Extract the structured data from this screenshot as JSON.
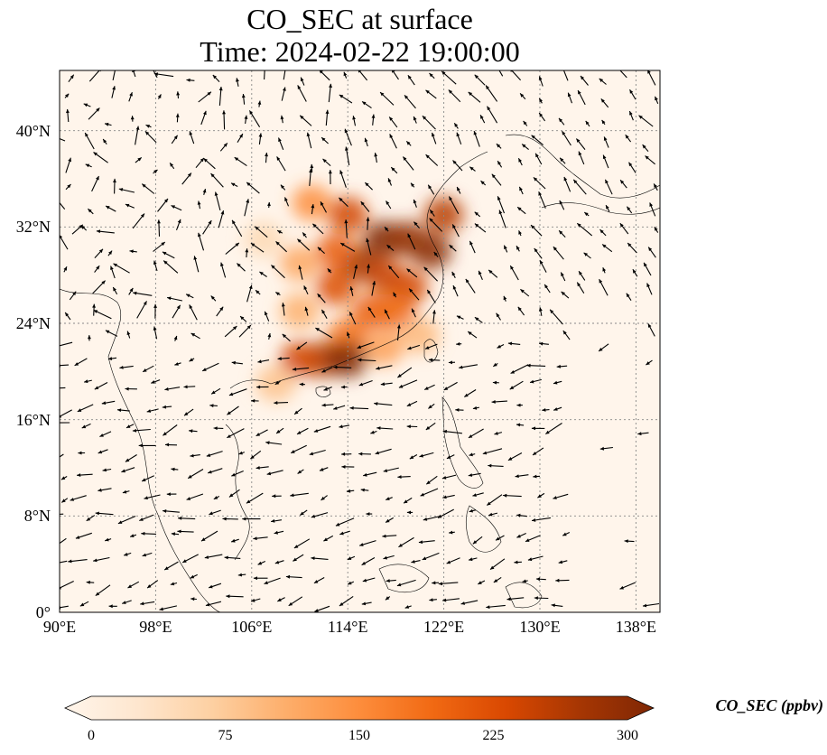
{
  "title": {
    "line1": "CO_SEC at surface",
    "line2": "Time: 2024-02-22 19:00:00"
  },
  "map": {
    "lon_range": [
      90,
      140
    ],
    "lat_range": [
      0,
      45
    ],
    "lat_ticks": [
      {
        "value": 0,
        "label": "0°"
      },
      {
        "value": 8,
        "label": "8°N"
      },
      {
        "value": 16,
        "label": "16°N"
      },
      {
        "value": 24,
        "label": "24°N"
      },
      {
        "value": 32,
        "label": "32°N"
      },
      {
        "value": 40,
        "label": "40°N"
      }
    ],
    "lon_ticks": [
      {
        "value": 90,
        "label": "90°E"
      },
      {
        "value": 98,
        "label": "98°E"
      },
      {
        "value": 106,
        "label": "106°E"
      },
      {
        "value": 114,
        "label": "114°E"
      },
      {
        "value": 122,
        "label": "122°E"
      },
      {
        "value": 130,
        "label": "130°E"
      },
      {
        "value": 138,
        "label": "138°E"
      }
    ],
    "gridlines": true,
    "background_color": "#fff5eb",
    "plume_cells": [
      {
        "lon": 117,
        "lat": 31,
        "value": 300
      },
      {
        "lon": 119,
        "lat": 31,
        "value": 280
      },
      {
        "lon": 121,
        "lat": 30,
        "value": 290
      },
      {
        "lon": 115,
        "lat": 29,
        "value": 270
      },
      {
        "lon": 117,
        "lat": 28,
        "value": 240
      },
      {
        "lon": 119,
        "lat": 27,
        "value": 230
      },
      {
        "lon": 113,
        "lat": 27,
        "value": 220
      },
      {
        "lon": 116,
        "lat": 25,
        "value": 200
      },
      {
        "lon": 118,
        "lat": 25,
        "value": 190
      },
      {
        "lon": 113,
        "lat": 30,
        "value": 200
      },
      {
        "lon": 114,
        "lat": 33,
        "value": 230
      },
      {
        "lon": 111,
        "lat": 34,
        "value": 150
      },
      {
        "lon": 110,
        "lat": 29,
        "value": 120
      },
      {
        "lon": 110,
        "lat": 25,
        "value": 110
      },
      {
        "lon": 114,
        "lat": 23,
        "value": 180
      },
      {
        "lon": 112,
        "lat": 21,
        "value": 260
      },
      {
        "lon": 114,
        "lat": 21,
        "value": 300
      },
      {
        "lon": 110,
        "lat": 21,
        "value": 230
      },
      {
        "lon": 117,
        "lat": 22,
        "value": 130
      },
      {
        "lon": 120,
        "lat": 23,
        "value": 100
      },
      {
        "lon": 108,
        "lat": 19,
        "value": 90
      },
      {
        "lon": 107,
        "lat": 31,
        "value": 60
      },
      {
        "lon": 122,
        "lat": 33,
        "value": 250
      }
    ]
  },
  "colorbar": {
    "label": "CO_SEC (ppbv)",
    "min": 0,
    "max": 300,
    "ticks": [
      "0",
      "75",
      "150",
      "225",
      "300"
    ],
    "colors": [
      "#fff5eb",
      "#fee6ce",
      "#fdd0a2",
      "#fdae6b",
      "#fd8d3c",
      "#f16913",
      "#d94801",
      "#a63603",
      "#7f2704"
    ]
  }
}
